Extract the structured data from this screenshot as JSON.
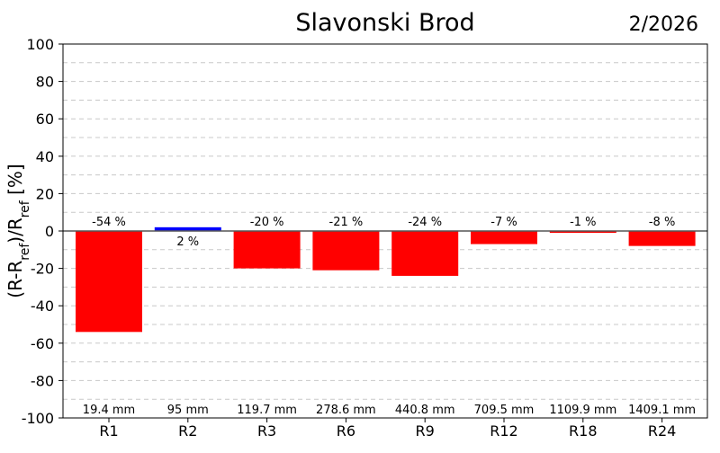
{
  "chart_data": {
    "type": "bar",
    "title": "Slavonski Brod",
    "period": "2/2026",
    "ylabel_parts": [
      "(R-R",
      "ref",
      ")/R",
      "ref",
      " [%]"
    ],
    "ylim": [
      -100,
      100
    ],
    "yticks": [
      100,
      80,
      60,
      40,
      20,
      0,
      -20,
      -40,
      -60,
      -80,
      -100
    ],
    "grid": true,
    "categories": [
      "R1",
      "R2",
      "R3",
      "R6",
      "R9",
      "R12",
      "R18",
      "R24"
    ],
    "values": [
      -54,
      2,
      -20,
      -21,
      -24,
      -7,
      -1,
      -8
    ],
    "value_labels": [
      "-54 %",
      "2 %",
      "-20 %",
      "-21 %",
      "-24 %",
      "-7 %",
      "-1 %",
      "-8 %"
    ],
    "amounts": [
      "19.4 mm",
      "95 mm",
      "119.7 mm",
      "278.6 mm",
      "440.8 mm",
      "709.5 mm",
      "1109.9 mm",
      "1409.1 mm"
    ],
    "colors": {
      "negative": "#ff0000",
      "positive": "#0000ff",
      "grid": "#c8c8c8",
      "zero": "#555555"
    }
  }
}
